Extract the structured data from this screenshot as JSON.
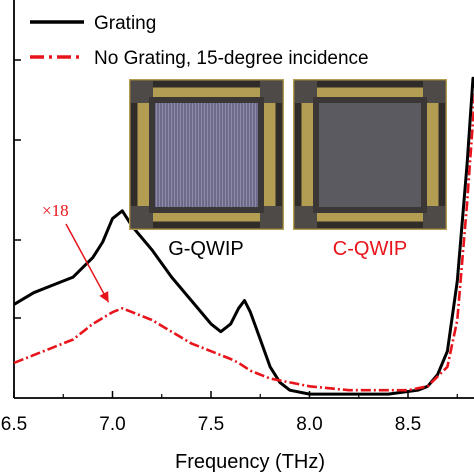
{
  "colors": {
    "grating": "#000000",
    "no_grating": "#e8141b",
    "chip_frame": "#b39d52",
    "chip_pad": "#4d4a48",
    "g_chip_center": "#6e6b8a",
    "c_chip_center": "#5b5a60"
  },
  "insets": [
    {
      "label": "G-QWIP",
      "label_color": "#000000",
      "icon": "grating-chip-photo"
    },
    {
      "label": "C-QWIP",
      "label_color": "#e8141b",
      "icon": "corrugated-chip-photo"
    }
  ],
  "chart_data": {
    "type": "line",
    "title": "",
    "xlabel": "Frequency (THz)",
    "ylabel": "",
    "xlim": [
      6.5,
      8.9
    ],
    "ylim": [
      0,
      1
    ],
    "x_ticks": [
      "6.5",
      "7.0",
      "7.5",
      "8.0",
      "8.5"
    ],
    "x_tick_values": [
      6.5,
      7.0,
      7.5,
      8.0,
      8.5
    ],
    "grid": false,
    "legend_position": "top-left",
    "annotation": {
      "text": "×18",
      "color": "#e8141b",
      "points_to": {
        "x": 6.98,
        "y": 0.23
      }
    },
    "series": [
      {
        "name": "Grating",
        "color": "#000000",
        "style": "solid",
        "x": [
          6.5,
          6.6,
          6.7,
          6.8,
          6.9,
          6.95,
          7.0,
          7.05,
          7.1,
          7.2,
          7.3,
          7.4,
          7.5,
          7.55,
          7.6,
          7.64,
          7.67,
          7.7,
          7.75,
          7.8,
          7.85,
          7.9,
          8.0,
          8.2,
          8.4,
          8.55,
          8.6,
          8.65,
          8.7,
          8.75,
          8.8,
          8.83,
          8.86,
          8.89
        ],
        "y": [
          0.24,
          0.27,
          0.29,
          0.31,
          0.36,
          0.4,
          0.46,
          0.48,
          0.44,
          0.38,
          0.31,
          0.25,
          0.19,
          0.17,
          0.19,
          0.23,
          0.25,
          0.22,
          0.15,
          0.08,
          0.04,
          0.02,
          0.01,
          0.01,
          0.01,
          0.02,
          0.03,
          0.06,
          0.12,
          0.3,
          0.6,
          0.82,
          0.76,
          0.6
        ]
      },
      {
        "name": "No Grating, 15-degree incidence",
        "color": "#e8141b",
        "style": "dash-dot",
        "x": [
          6.5,
          6.6,
          6.7,
          6.8,
          6.9,
          7.0,
          7.05,
          7.1,
          7.2,
          7.3,
          7.4,
          7.5,
          7.6,
          7.64,
          7.7,
          7.8,
          7.9,
          8.0,
          8.2,
          8.4,
          8.5,
          8.6,
          8.7,
          8.75,
          8.8,
          8.85,
          8.89
        ],
        "y": [
          0.09,
          0.11,
          0.13,
          0.15,
          0.19,
          0.22,
          0.23,
          0.22,
          0.2,
          0.17,
          0.14,
          0.12,
          0.1,
          0.09,
          0.07,
          0.05,
          0.04,
          0.03,
          0.02,
          0.02,
          0.02,
          0.03,
          0.08,
          0.2,
          0.5,
          0.85,
          0.95
        ]
      }
    ]
  }
}
